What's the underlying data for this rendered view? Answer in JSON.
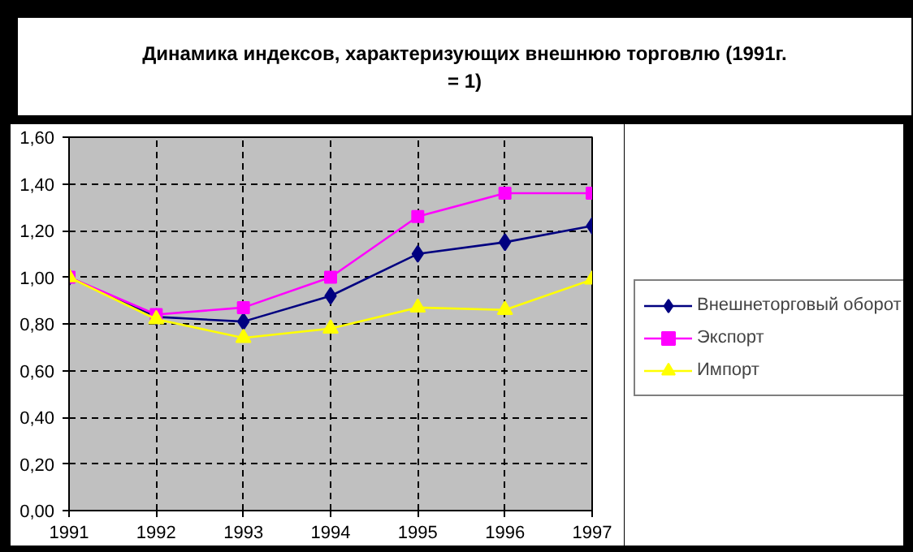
{
  "chart_data": {
    "type": "line",
    "title": "Динамика индексов, характеризующих внешнюю торговлю (1991г. = 1)",
    "x": [
      1991,
      1992,
      1993,
      1994,
      1995,
      1996,
      1997
    ],
    "xlim": [
      1991,
      1997
    ],
    "xticks": [
      1991,
      1992,
      1993,
      1994,
      1995,
      1996,
      1997
    ],
    "ylim": [
      0,
      1.6
    ],
    "yticks": [
      {
        "value": 0,
        "label": "0,00"
      },
      {
        "value": 0.2,
        "label": "0,20"
      },
      {
        "value": 0.4,
        "label": "0,40"
      },
      {
        "value": 0.6,
        "label": "0,60"
      },
      {
        "value": 0.8,
        "label": "0,80"
      },
      {
        "value": 1.0,
        "label": "1,00"
      },
      {
        "value": 1.2,
        "label": "1,20"
      },
      {
        "value": 1.4,
        "label": "1,40"
      },
      {
        "value": 1.6,
        "label": "1,60"
      }
    ],
    "grid": true,
    "legend": "right",
    "line_style": "solid",
    "series": [
      {
        "name": "Внешнеторговый оборот",
        "color": "#000080",
        "marker": "diamond",
        "values": [
          1.0,
          0.83,
          0.81,
          0.92,
          1.1,
          1.15,
          1.22
        ]
      },
      {
        "name": "Экспорт",
        "color": "#ff00ff",
        "marker": "square",
        "values": [
          1.0,
          0.84,
          0.87,
          1.0,
          1.26,
          1.36,
          1.36
        ]
      },
      {
        "name": "Импорт",
        "color": "#ffff00",
        "marker": "triangle",
        "values": [
          1.0,
          0.82,
          0.74,
          0.78,
          0.87,
          0.86,
          0.99
        ]
      }
    ]
  }
}
